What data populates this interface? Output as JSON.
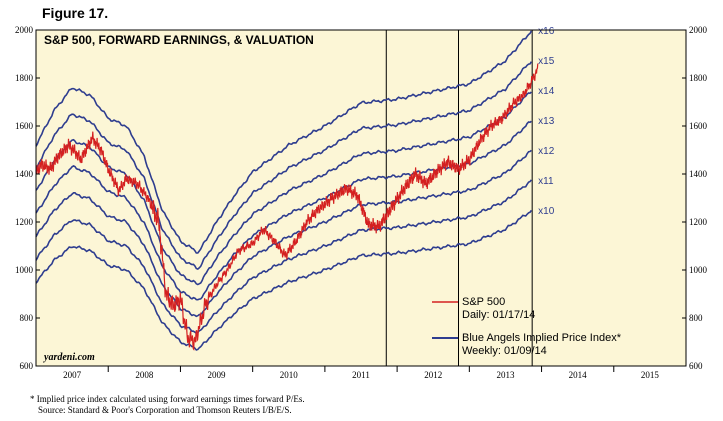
{
  "figure_label": "Figure 17.",
  "footnote": {
    "line1": "*  Implied price index calculated using forward earnings times forward P/Es.",
    "line2": "Source: Standard & Poor's Corporation and Thomson Reuters I/B/E/S."
  },
  "watermark": "yardeni.com",
  "colors": {
    "background": "#fcf6d6",
    "sp500": "#d42020",
    "blue_angels": "#2e3d8f",
    "grid": "#000000"
  },
  "chart_data": {
    "type": "line",
    "title": "S&P 500, FORWARD EARNINGS, & VALUATION",
    "xlabel": "",
    "ylabel": "",
    "xlim": [
      2007.0,
      2016.0
    ],
    "ylim": [
      600,
      2000
    ],
    "y_ticks": [
      600,
      800,
      1000,
      1200,
      1400,
      1600,
      1800,
      2000
    ],
    "x_tick_labels": [
      {
        "label": "2007",
        "x": 2007.5
      },
      {
        "label": "2008",
        "x": 2008.5
      },
      {
        "label": "2009",
        "x": 2009.5
      },
      {
        "label": "2010",
        "x": 2010.5
      },
      {
        "label": "2011",
        "x": 2011.5
      },
      {
        "label": "2012",
        "x": 2012.5
      },
      {
        "label": "2013",
        "x": 2013.5
      },
      {
        "label": "2014",
        "x": 2014.5
      },
      {
        "label": "2015",
        "x": 2015.5
      }
    ],
    "year_dividers": [
      2008,
      2009,
      2010,
      2011,
      2012,
      2013,
      2014,
      2015
    ],
    "vertical_markers": [
      2011.85,
      2012.85,
      2013.87
    ],
    "legend": [
      {
        "series": "sp500",
        "label": "S&P 500",
        "sublabel": "Daily: 01/17/14"
      },
      {
        "series": "blue_angels",
        "label": "Blue Angels Implied Price Index*",
        "sublabel": "Weekly: 01/09/14"
      }
    ],
    "legend_position": "bottom-right",
    "forward_earnings": {
      "x": [
        2007.0,
        2007.25,
        2007.5,
        2007.75,
        2008.0,
        2008.25,
        2008.5,
        2008.75,
        2009.0,
        2009.25,
        2009.5,
        2009.75,
        2010.0,
        2010.5,
        2011.0,
        2011.5,
        2012.0,
        2012.5,
        2013.0,
        2013.5,
        2013.87
      ],
      "values": [
        95,
        104,
        110,
        108,
        102,
        100,
        92,
        78,
        70,
        67,
        75,
        82,
        88,
        95,
        100,
        106,
        107,
        109,
        111,
        117,
        125
      ]
    },
    "series": [
      {
        "name": "Blue Angels Implied Price Index",
        "multiples": [
          {
            "label": "x10",
            "multiple": 10
          },
          {
            "label": "x11",
            "multiple": 11
          },
          {
            "label": "x12",
            "multiple": 12
          },
          {
            "label": "x13",
            "multiple": 13
          },
          {
            "label": "x14",
            "multiple": 14
          },
          {
            "label": "x15",
            "multiple": 15
          },
          {
            "label": "x16",
            "multiple": 16
          }
        ]
      },
      {
        "name": "S&P 500",
        "x": [
          2007.0,
          2007.08,
          2007.2,
          2007.3,
          2007.45,
          2007.55,
          2007.62,
          2007.78,
          2007.9,
          2008.0,
          2008.15,
          2008.25,
          2008.4,
          2008.55,
          2008.7,
          2008.8,
          2008.9,
          2009.0,
          2009.1,
          2009.2,
          2009.35,
          2009.5,
          2009.65,
          2009.8,
          2010.0,
          2010.15,
          2010.3,
          2010.45,
          2010.6,
          2010.75,
          2010.9,
          2011.1,
          2011.3,
          2011.45,
          2011.6,
          2011.75,
          2011.9,
          2012.1,
          2012.25,
          2012.4,
          2012.55,
          2012.7,
          2012.85,
          2013.0,
          2013.15,
          2013.3,
          2013.45,
          2013.6,
          2013.75,
          2013.87,
          2013.95
        ],
        "values": [
          1410,
          1440,
          1420,
          1470,
          1520,
          1490,
          1460,
          1550,
          1500,
          1420,
          1330,
          1380,
          1360,
          1300,
          1200,
          900,
          850,
          880,
          720,
          700,
          860,
          940,
          1000,
          1080,
          1110,
          1170,
          1120,
          1060,
          1120,
          1200,
          1250,
          1300,
          1340,
          1310,
          1190,
          1180,
          1250,
          1340,
          1400,
          1360,
          1410,
          1450,
          1420,
          1460,
          1540,
          1600,
          1630,
          1690,
          1730,
          1790,
          1840
        ]
      }
    ]
  }
}
